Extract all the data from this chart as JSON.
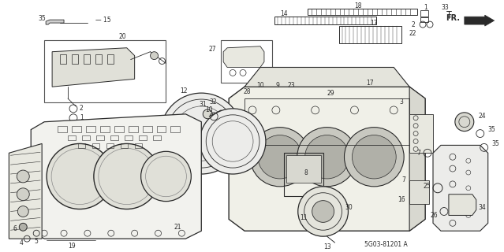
{
  "diagram_code": "5G03-81201 A",
  "background_color": "#ffffff",
  "line_color": "#2a2a2a",
  "figsize": [
    6.39,
    3.2
  ],
  "dpi": 100
}
